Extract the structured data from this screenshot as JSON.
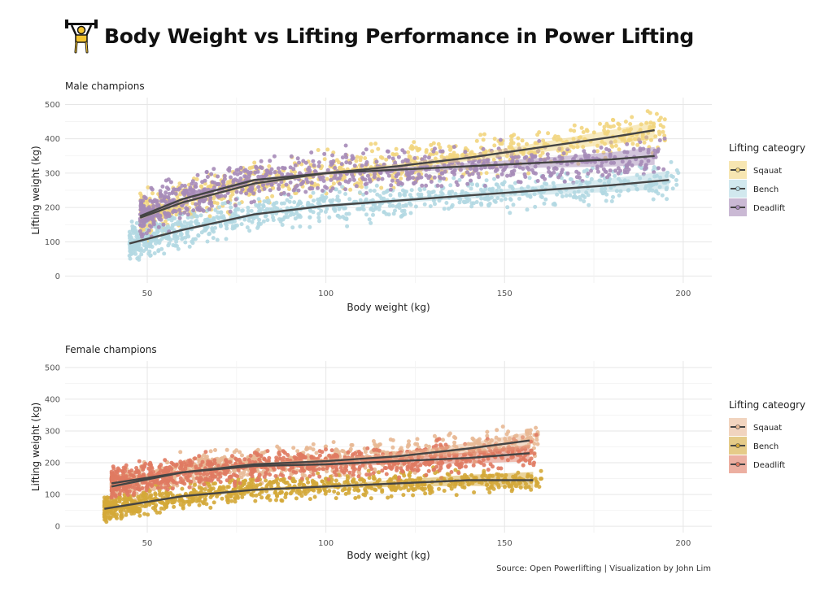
{
  "title": "Body Weight vs Lifting Performance in Power Lifting",
  "caption": "Source: Open Powerlifting | Visualization by John Lim",
  "icon": "weightlifter-icon",
  "chart_data": [
    {
      "type": "scatter",
      "title": "Male champions",
      "xlabel": "Body weight (kg)",
      "ylabel": "Lifting weight (kg)",
      "xlim": [
        27,
        208
      ],
      "ylim": [
        -20,
        520
      ],
      "xticks": [
        50,
        100,
        150,
        200
      ],
      "yticks": [
        0,
        100,
        200,
        300,
        400,
        500
      ],
      "grid": true,
      "legend": {
        "title": "Lifting cateogry",
        "position": "right"
      },
      "series": [
        {
          "name": "Sqauat",
          "color": "#F2D57E",
          "x_range": [
            48,
            192
          ],
          "y_at_x_range": [
            170,
            425
          ],
          "spread": 35,
          "seed": 11,
          "trend": {
            "x": [
              48,
              60,
              80,
              100,
              120,
              140,
              160,
              180,
              192
            ],
            "y": [
              170,
              215,
              270,
              300,
              320,
              345,
              375,
              405,
              425
            ]
          }
        },
        {
          "name": "Bench",
          "color": "#B2D8E2",
          "x_range": [
            45,
            196
          ],
          "y_at_x_range": [
            95,
            280
          ],
          "spread": 30,
          "seed": 23,
          "trend": {
            "x": [
              45,
              60,
              80,
              100,
              120,
              140,
              160,
              180,
              196
            ],
            "y": [
              95,
              135,
              180,
              205,
              220,
              235,
              250,
              265,
              280
            ]
          }
        },
        {
          "name": "Deadlift",
          "color": "#A68BB8",
          "x_range": [
            48,
            192
          ],
          "y_at_x_range": [
            175,
            350
          ],
          "spread": 35,
          "seed": 37,
          "trend": {
            "x": [
              48,
              60,
              80,
              100,
              120,
              140,
              160,
              180,
              192
            ],
            "y": [
              175,
              225,
              280,
              300,
              310,
              320,
              330,
              340,
              350
            ]
          }
        }
      ]
    },
    {
      "type": "scatter",
      "title": "Female champions",
      "xlabel": "Body weight (kg)",
      "ylabel": "Lifting weight (kg)",
      "xlim": [
        27,
        208
      ],
      "ylim": [
        -20,
        520
      ],
      "xticks": [
        50,
        100,
        150,
        200
      ],
      "yticks": [
        0,
        100,
        200,
        300,
        400,
        500
      ],
      "grid": true,
      "legend": {
        "title": "Lifting cateogry",
        "position": "right"
      },
      "series": [
        {
          "name": "Sqauat",
          "color": "#E8B894",
          "x_range": [
            40,
            157
          ],
          "y_at_x_range": [
            125,
            270
          ],
          "spread": 28,
          "seed": 51,
          "trend": {
            "x": [
              40,
              60,
              80,
              100,
              120,
              140,
              157
            ],
            "y": [
              125,
              170,
              195,
              205,
              220,
              245,
              270
            ]
          }
        },
        {
          "name": "Bench",
          "color": "#D4A838",
          "x_range": [
            38,
            158
          ],
          "y_at_x_range": [
            55,
            145
          ],
          "spread": 22,
          "seed": 63,
          "trend": {
            "x": [
              38,
              60,
              80,
              100,
              120,
              140,
              158
            ],
            "y": [
              55,
              95,
              115,
              125,
              135,
              145,
              145
            ]
          }
        },
        {
          "name": "Deadlift",
          "color": "#E07A62",
          "x_range": [
            40,
            157
          ],
          "y_at_x_range": [
            135,
            230
          ],
          "spread": 28,
          "seed": 77,
          "trend": {
            "x": [
              40,
              60,
              80,
              100,
              120,
              140,
              157
            ],
            "y": [
              135,
              170,
              190,
              195,
              205,
              215,
              230
            ]
          }
        }
      ]
    }
  ]
}
